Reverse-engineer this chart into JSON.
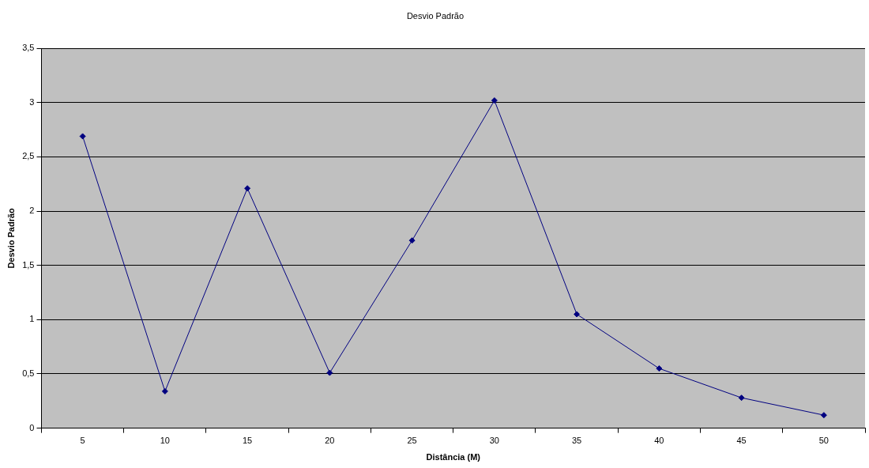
{
  "chart_data": {
    "type": "line",
    "title": "Desvio Padrão",
    "xlabel": "Distância (M)",
    "ylabel": "Desvio Padrão",
    "categories": [
      "5",
      "10",
      "15",
      "20",
      "25",
      "30",
      "35",
      "40",
      "45",
      "50"
    ],
    "series": [
      {
        "color": "#000080",
        "values": [
          2.69,
          0.34,
          2.21,
          0.51,
          1.73,
          3.02,
          1.05,
          0.55,
          0.28,
          0.12
        ]
      }
    ],
    "ylim": [
      0,
      3.5
    ],
    "yticks": [
      0,
      {
        "value": 0.5,
        "label": "0,5"
      },
      1,
      {
        "value": 1.5,
        "label": "1,5"
      },
      2,
      {
        "value": 2.5,
        "label": "2,5"
      },
      3,
      {
        "value": 3.5,
        "label": "3,5"
      }
    ],
    "grid": "y",
    "marker": "diamond",
    "line_style": "solid",
    "legend": false
  }
}
